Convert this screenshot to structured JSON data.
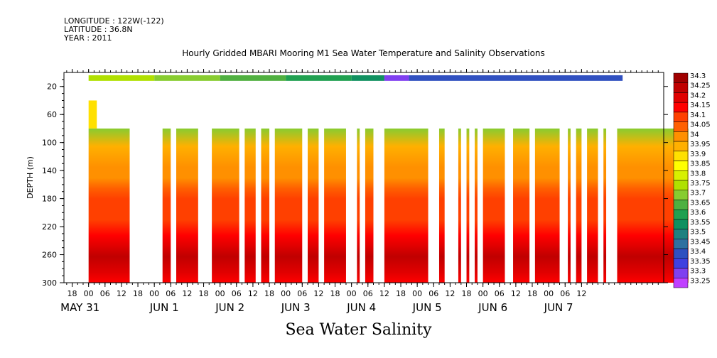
{
  "header": {
    "longitude": "LONGITUDE : 122W(-122)",
    "latitude": "LATITUDE : 36.8N",
    "year": "YEAR : 2011"
  },
  "chart_data": {
    "type": "heatmap",
    "title": "Hourly Gridded MBARI Mooring M1 Sea Water Temperature and Salinity Observations",
    "subtitle": "Sea Water Salinity",
    "ylabel": "DEPTH (m)",
    "ylim": [
      300,
      0
    ],
    "y_ticks": [
      20,
      60,
      100,
      140,
      180,
      220,
      260,
      300
    ],
    "x_ticks_hours": [
      "18",
      "00",
      "06",
      "12",
      "18",
      "00",
      "06",
      "12",
      "18",
      "00",
      "06",
      "12",
      "18",
      "00",
      "06",
      "12",
      "18",
      "00",
      "06",
      "12",
      "18",
      "00",
      "06",
      "12",
      "18",
      "00",
      "06",
      "12",
      "18",
      "00",
      "06",
      "12"
    ],
    "x_date_labels": [
      "MAY 31",
      "JUN  1",
      "JUN  2",
      "JUN  3",
      "JUN  4",
      "JUN  5",
      "JUN  6",
      "JUN  7"
    ],
    "x_range_hours": [
      "2011-05-30 15:00",
      "2011-06-07 18:00"
    ],
    "colorbar": {
      "levels": [
        "34.3",
        "34.25",
        "34.2",
        "34.15",
        "34.1",
        "34.05",
        "34",
        "33.95",
        "33.9",
        "33.85",
        "33.8",
        "33.75",
        "33.7",
        "33.65",
        "33.6",
        "33.55",
        "33.5",
        "33.45",
        "33.4",
        "33.35",
        "33.3",
        "33.25"
      ],
      "colors": [
        "#a00000",
        "#c00000",
        "#e00000",
        "#ff0000",
        "#ff4000",
        "#ff6000",
        "#ff9000",
        "#ffb000",
        "#ffe000",
        "#ffff00",
        "#d8f000",
        "#b0e000",
        "#88cc30",
        "#50b040",
        "#20a050",
        "#109060",
        "#208080",
        "#3070a0",
        "#3050c0",
        "#4040e0",
        "#8040f0",
        "#c040ff"
      ]
    },
    "depth_profile": [
      {
        "depth": 0,
        "value": "33.7"
      },
      {
        "depth": 40,
        "value": "33.95"
      },
      {
        "depth": 80,
        "value": "34"
      },
      {
        "depth": 100,
        "value": "34"
      },
      {
        "depth": 120,
        "value": "34.05"
      },
      {
        "depth": 140,
        "value": "34.1"
      },
      {
        "depth": 180,
        "value": "34.1"
      },
      {
        "depth": 210,
        "value": "34.15"
      },
      {
        "depth": 230,
        "value": "34.2"
      },
      {
        "depth": 250,
        "value": "34.25"
      },
      {
        "depth": 280,
        "value": "34.2"
      },
      {
        "depth": 300,
        "value": "34.15"
      }
    ],
    "surface_segment_values": [
      {
        "from_hour": 0,
        "to_hour": 24,
        "value": "33.75"
      },
      {
        "from_hour": 24,
        "to_hour": 48,
        "value": "33.7"
      },
      {
        "from_hour": 48,
        "to_hour": 72,
        "value": "33.65"
      },
      {
        "from_hour": 72,
        "to_hour": 96,
        "value": "33.6"
      },
      {
        "from_hour": 96,
        "to_hour": 108,
        "value": "33.55"
      },
      {
        "from_hour": 108,
        "to_hour": 117,
        "value": "33.3"
      },
      {
        "from_hour": 117,
        "to_hour": 195,
        "value": "33.4"
      }
    ],
    "valid_hour_intervals": [
      [
        0,
        15
      ],
      [
        27,
        30
      ],
      [
        32,
        40
      ],
      [
        45,
        55
      ],
      [
        57,
        61
      ],
      [
        63,
        66
      ],
      [
        68,
        78
      ],
      [
        80,
        84
      ],
      [
        86,
        94
      ],
      [
        98,
        99
      ],
      [
        101,
        104
      ],
      [
        108,
        124
      ],
      [
        128,
        130
      ],
      [
        135,
        136
      ],
      [
        138,
        139
      ],
      [
        141,
        142
      ],
      [
        144,
        152
      ],
      [
        155,
        161
      ],
      [
        163,
        172
      ],
      [
        175,
        176
      ],
      [
        178,
        180
      ],
      [
        182,
        186
      ],
      [
        188,
        189
      ],
      [
        193,
        219
      ]
    ]
  }
}
